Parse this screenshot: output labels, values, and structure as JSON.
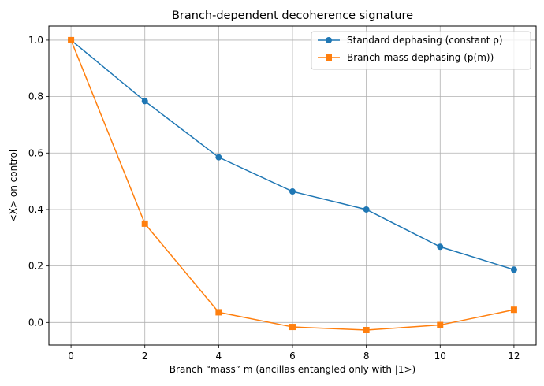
{
  "chart_data": {
    "type": "line",
    "title": "Branch-dependent decoherence signature",
    "xlabel": "Branch “mass” m (ancillas entangled only with |1>)",
    "ylabel": "<X> on control",
    "x": [
      0,
      2,
      4,
      6,
      8,
      10,
      12
    ],
    "xticks": [
      0,
      2,
      4,
      6,
      8,
      10,
      12
    ],
    "xtick_labels": [
      "0",
      "2",
      "4",
      "6",
      "8",
      "10",
      "12"
    ],
    "yticks": [
      0.0,
      0.2,
      0.4,
      0.6,
      0.8,
      1.0
    ],
    "ytick_labels": [
      "0.0",
      "0.2",
      "0.4",
      "0.6",
      "0.8",
      "1.0"
    ],
    "xlim": [
      -0.6,
      12.6
    ],
    "ylim": [
      -0.08,
      1.05
    ],
    "grid": true,
    "legend_position": "top-right",
    "series": [
      {
        "name": "Standard dephasing (constant p)",
        "color": "#1f77b4",
        "marker": "circle",
        "values": [
          1.0,
          0.784,
          0.585,
          0.464,
          0.4,
          0.268,
          0.187
        ]
      },
      {
        "name": "Branch-mass dephasing (p(m))",
        "color": "#ff7f0e",
        "marker": "square",
        "values": [
          1.0,
          0.35,
          0.036,
          -0.016,
          -0.027,
          -0.009,
          0.045
        ]
      }
    ]
  }
}
